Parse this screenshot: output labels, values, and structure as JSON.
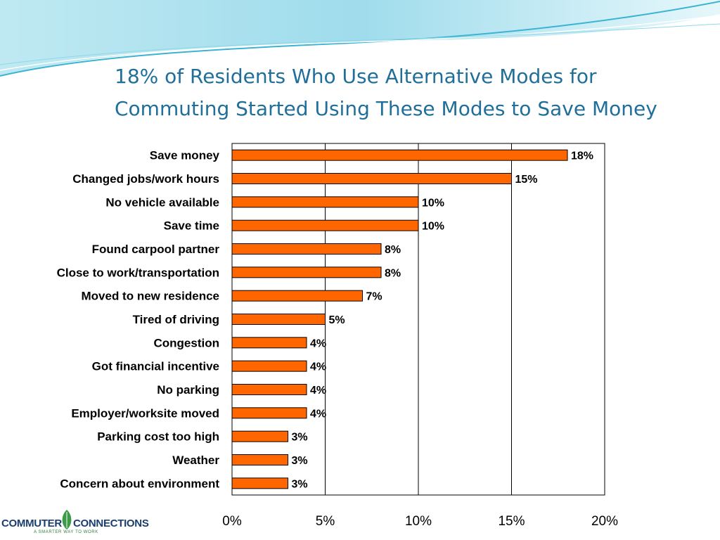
{
  "slide": {
    "title_line1": "18% of Residents Who Use Alternative Modes for",
    "title_line2": "Commuting Started Using These Modes to Save Money"
  },
  "logo": {
    "left_text": "COMMUTER",
    "right_text": "CONNECTIONS",
    "tagline": "A SMARTER WAY TO WORK"
  },
  "colors": {
    "bar_fill": "#ff6600",
    "bar_stroke": "#000000",
    "title": "#1f6f9a",
    "wave_light": "#cdeef4",
    "wave_mid": "#8ed8e8",
    "wave_dark": "#3bb3d3"
  },
  "chart_data": {
    "type": "bar",
    "orientation": "horizontal",
    "categories": [
      "Save money",
      "Changed jobs/work hours",
      "No vehicle available",
      "Save time",
      "Found carpool partner",
      "Close to work/transportation",
      "Moved to new residence",
      "Tired of driving",
      "Congestion",
      "Got financial incentive",
      "No parking",
      "Employer/worksite moved",
      "Parking cost too high",
      "Weather",
      "Concern about environment"
    ],
    "values": [
      18,
      15,
      10,
      10,
      8,
      8,
      7,
      5,
      4,
      4,
      4,
      4,
      3,
      3,
      3
    ],
    "data_labels": [
      "18%",
      "15%",
      "10%",
      "10%",
      "8%",
      "8%",
      "7%",
      "5%",
      "4%",
      "4%",
      "4%",
      "4%",
      "3%",
      "3%",
      "3%"
    ],
    "xlim": [
      0,
      20
    ],
    "xticks": [
      0,
      5,
      10,
      15,
      20
    ],
    "xtick_labels": [
      "0%",
      "5%",
      "10%",
      "15%",
      "20%"
    ],
    "grid": "vertical",
    "legend": "none"
  }
}
